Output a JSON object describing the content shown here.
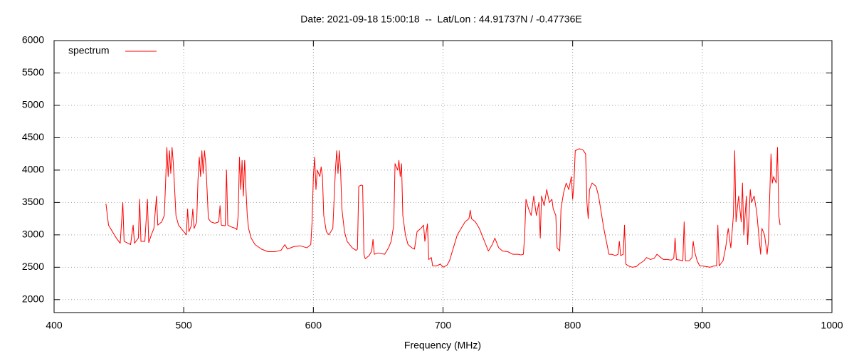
{
  "chart_data": {
    "type": "line",
    "title": "Date: 2021-09-18 15:00:18  --  Lat/Lon : 44.91737N / -0.47736E",
    "xlabel": "Frequency (MHz)",
    "xlim": [
      400,
      1000
    ],
    "xticks": [
      400,
      500,
      600,
      700,
      800,
      900,
      1000
    ],
    "ylim": [
      1800,
      6000
    ],
    "yticks": [
      2000,
      2500,
      3000,
      3500,
      4000,
      4500,
      5000,
      5500,
      6000
    ],
    "grid": true,
    "legend": "upper left",
    "x": [
      440,
      442,
      445,
      448,
      451,
      453,
      454,
      457,
      459,
      461,
      462,
      465,
      466,
      467,
      470,
      472,
      473,
      475,
      477,
      479,
      480,
      483,
      485,
      486,
      487,
      488,
      489,
      490,
      491,
      492,
      493,
      494,
      496,
      498,
      500,
      502,
      503,
      504,
      506,
      507,
      508,
      510,
      511,
      512,
      513,
      514,
      515,
      516,
      517,
      518,
      519,
      521,
      524,
      527,
      528,
      529,
      532,
      533,
      534,
      537,
      540,
      541,
      542,
      543,
      544,
      545,
      546,
      547,
      548,
      549,
      550,
      552,
      555,
      560,
      565,
      570,
      575,
      578,
      580,
      585,
      590,
      595,
      598,
      599,
      600,
      601,
      602,
      603,
      605,
      606,
      607,
      608,
      610,
      612,
      615,
      617,
      618,
      619,
      620,
      621,
      622,
      624,
      626,
      630,
      633,
      634,
      635,
      637,
      638,
      639,
      640,
      643,
      645,
      646,
      647,
      650,
      655,
      658,
      660,
      662,
      663,
      665,
      666,
      667,
      668,
      669,
      671,
      673,
      676,
      678,
      680,
      683,
      685,
      686,
      688,
      689,
      691,
      692,
      695,
      698,
      700,
      703,
      705,
      708,
      711,
      714,
      717,
      720,
      721,
      722,
      725,
      728,
      730,
      733,
      735,
      738,
      740,
      743,
      746,
      750,
      754,
      758,
      760,
      762,
      763,
      764,
      766,
      768,
      770,
      772,
      774,
      775,
      776,
      778,
      780,
      782,
      784,
      785,
      787,
      788,
      790,
      791,
      793,
      795,
      797,
      799,
      800,
      801,
      802,
      805,
      808,
      810,
      811,
      812,
      813,
      815,
      818,
      820,
      822,
      824,
      826,
      828,
      830,
      833,
      835,
      836,
      837,
      839,
      840,
      841,
      843,
      846,
      849,
      852,
      855,
      857,
      860,
      863,
      865,
      868,
      870,
      873,
      876,
      878,
      879,
      880,
      883,
      885,
      886,
      887,
      890,
      892,
      893,
      894,
      896,
      898,
      900,
      903,
      906,
      909,
      911,
      912,
      913,
      916,
      918,
      920,
      922,
      924,
      925,
      926,
      928,
      930,
      931,
      932,
      934,
      935,
      937,
      938,
      940,
      942,
      944,
      945,
      946,
      948,
      950,
      951,
      952,
      953,
      954,
      955,
      957,
      958,
      959,
      960
    ],
    "series": [
      {
        "name": "spectrum",
        "color": "#ff0000",
        "values": [
          3480,
          3150,
          3050,
          2950,
          2870,
          3500,
          2900,
          2870,
          2850,
          3150,
          2870,
          2950,
          3550,
          2900,
          2900,
          3550,
          2880,
          3000,
          3100,
          3600,
          3150,
          3200,
          3300,
          3800,
          4350,
          3900,
          4300,
          3950,
          4350,
          4100,
          3700,
          3300,
          3150,
          3100,
          3050,
          3000,
          3400,
          3050,
          3150,
          3400,
          3100,
          3200,
          3850,
          4200,
          3900,
          4300,
          3950,
          4300,
          4100,
          3700,
          3250,
          3200,
          3180,
          3200,
          3450,
          3150,
          3140,
          4000,
          3150,
          3120,
          3100,
          3080,
          3300,
          4200,
          3700,
          4150,
          3600,
          4150,
          3700,
          3300,
          3100,
          2950,
          2850,
          2780,
          2740,
          2740,
          2760,
          2850,
          2780,
          2820,
          2830,
          2800,
          2850,
          3200,
          3900,
          4200,
          3700,
          4000,
          3900,
          4050,
          3900,
          3300,
          3050,
          3000,
          3100,
          4000,
          4300,
          3950,
          4300,
          4000,
          3400,
          3050,
          2900,
          2800,
          2760,
          2780,
          3750,
          3770,
          3760,
          2700,
          2630,
          2680,
          2750,
          2930,
          2700,
          2720,
          2700,
          2800,
          2900,
          3150,
          4100,
          4000,
          4150,
          3900,
          4100,
          3300,
          3000,
          2850,
          2800,
          2780,
          3050,
          3100,
          3150,
          2900,
          3170,
          2620,
          2650,
          2520,
          2520,
          2550,
          2500,
          2530,
          2600,
          2800,
          3000,
          3100,
          3200,
          3250,
          3380,
          3250,
          3200,
          3100,
          3000,
          2850,
          2750,
          2850,
          2950,
          2800,
          2750,
          2740,
          2700,
          2700,
          2690,
          2700,
          3000,
          3550,
          3400,
          3300,
          3600,
          3300,
          3500,
          2950,
          3600,
          3450,
          3700,
          3500,
          3550,
          3400,
          3300,
          2800,
          2750,
          3400,
          3650,
          3800,
          3700,
          3900,
          3550,
          3800,
          4300,
          4330,
          4310,
          4250,
          3500,
          3250,
          3700,
          3800,
          3750,
          3600,
          3350,
          3100,
          2900,
          2700,
          2700,
          2680,
          2700,
          2900,
          2680,
          2700,
          3150,
          2550,
          2520,
          2500,
          2510,
          2560,
          2600,
          2650,
          2620,
          2640,
          2700,
          2650,
          2620,
          2620,
          2610,
          2640,
          2950,
          2620,
          2610,
          2600,
          3200,
          2600,
          2600,
          2650,
          2900,
          2750,
          2600,
          2520,
          2520,
          2510,
          2500,
          2520,
          2520,
          3150,
          2520,
          2600,
          2800,
          3100,
          2800,
          3300,
          4300,
          3200,
          3600,
          3200,
          3800,
          3000,
          3600,
          2850,
          3700,
          3500,
          3600,
          3350,
          2900,
          2700,
          3100,
          3000,
          2700,
          2900,
          3600,
          4250,
          3800,
          3900,
          3800,
          4350,
          3300,
          3150
        ]
      }
    ]
  }
}
